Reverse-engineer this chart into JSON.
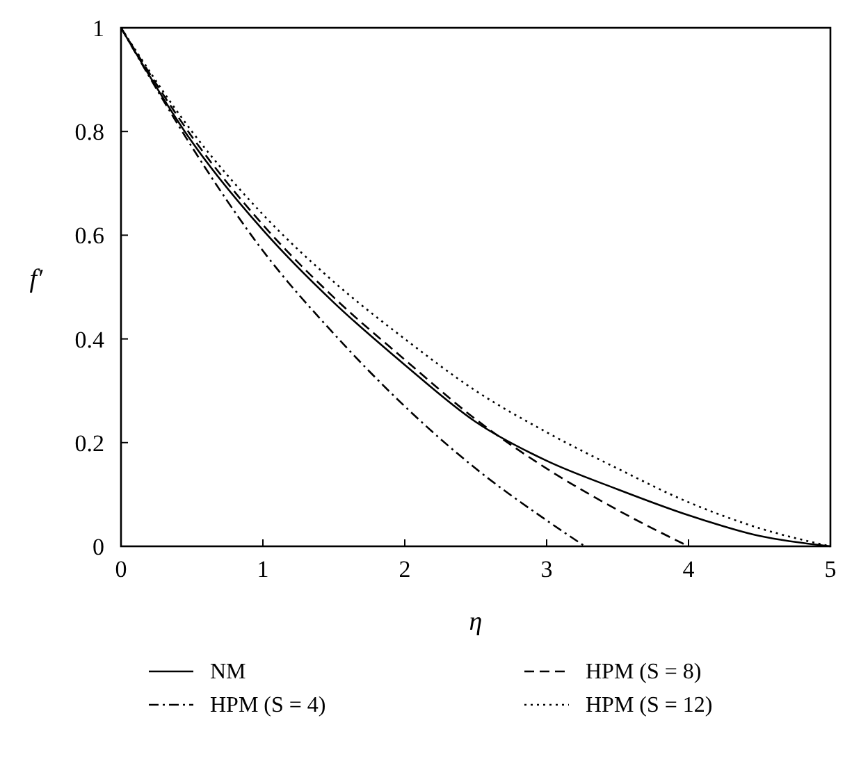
{
  "chart_data": {
    "type": "line",
    "xlabel": "η",
    "ylabel": "f′",
    "xlim": [
      0,
      5
    ],
    "ylim": [
      0,
      1
    ],
    "xticks": [
      0,
      1,
      2,
      3,
      4,
      5
    ],
    "yticks": [
      0,
      0.2,
      0.4,
      0.6,
      0.8,
      1
    ],
    "grid": false,
    "legend": "bottom",
    "series": [
      {
        "name": "NM",
        "color": "#000000",
        "line_style": "solid",
        "x": [
          0,
          0.5,
          1,
          1.5,
          2,
          2.5,
          3,
          3.5,
          4,
          4.5,
          5
        ],
        "values": [
          1,
          0.78,
          0.61,
          0.47,
          0.35,
          0.24,
          0.165,
          0.11,
          0.06,
          0.02,
          0
        ]
      },
      {
        "name": "HPM (S = 8)",
        "color": "#000000",
        "line_style": "dashed",
        "x": [
          0,
          0.5,
          1,
          1.5,
          2,
          2.5,
          3,
          3.5,
          4
        ],
        "values": [
          1,
          0.79,
          0.62,
          0.48,
          0.36,
          0.245,
          0.15,
          0.07,
          0
        ]
      },
      {
        "name": "HPM (S = 4)",
        "color": "#000000",
        "line_style": "dashdot",
        "x": [
          0,
          0.5,
          1,
          1.5,
          2,
          2.5,
          3,
          3.27
        ],
        "values": [
          1,
          0.77,
          0.57,
          0.41,
          0.27,
          0.15,
          0.05,
          0
        ]
      },
      {
        "name": "HPM (S = 12)",
        "color": "#000000",
        "line_style": "dotted",
        "x": [
          0,
          0.5,
          1,
          1.5,
          2,
          2.5,
          3,
          3.5,
          4,
          4.5,
          5
        ],
        "values": [
          1,
          0.8,
          0.64,
          0.51,
          0.4,
          0.3,
          0.22,
          0.15,
          0.085,
          0.035,
          0
        ]
      }
    ]
  }
}
